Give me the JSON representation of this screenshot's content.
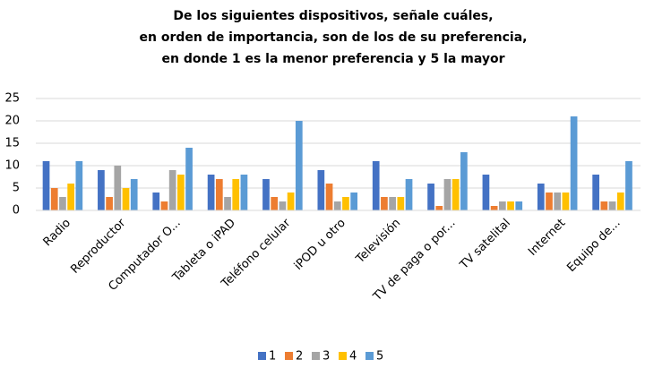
{
  "chart_data": {
    "type": "bar",
    "title": [
      "De los siguientes dispositivos, señale cuáles,",
      "en orden de importancia, son de los de su preferencia,",
      "en donde 1 es la menor preferencia y 5 la mayor"
    ],
    "categories": [
      "Radio",
      "Reproductor",
      "Computador O...",
      "Tableta o iPAD",
      "Teléfono celular",
      "iPOD u otro",
      "Televisión",
      "TV de paga o por...",
      "TV satelital",
      "Internet",
      "Equipo de..."
    ],
    "series": [
      {
        "name": "1",
        "color": "#4472c4",
        "values": [
          11,
          9,
          4,
          8,
          7,
          9,
          11,
          6,
          8,
          6,
          8
        ]
      },
      {
        "name": "2",
        "color": "#ed7d31",
        "values": [
          5,
          3,
          2,
          7,
          3,
          6,
          3,
          1,
          1,
          4,
          2
        ]
      },
      {
        "name": "3",
        "color": "#a5a5a5",
        "values": [
          3,
          10,
          9,
          3,
          2,
          2,
          3,
          7,
          2,
          4,
          2
        ]
      },
      {
        "name": "4",
        "color": "#ffc000",
        "values": [
          6,
          5,
          8,
          7,
          4,
          3,
          3,
          7,
          2,
          4,
          4
        ]
      },
      {
        "name": "5",
        "color": "#5b9bd5",
        "values": [
          11,
          7,
          14,
          8,
          20,
          4,
          7,
          13,
          2,
          21,
          11
        ]
      }
    ],
    "ylim": [
      0,
      25
    ],
    "yticks": [
      0,
      5,
      10,
      15,
      20,
      25
    ],
    "grid": true,
    "legend": "bottom"
  }
}
